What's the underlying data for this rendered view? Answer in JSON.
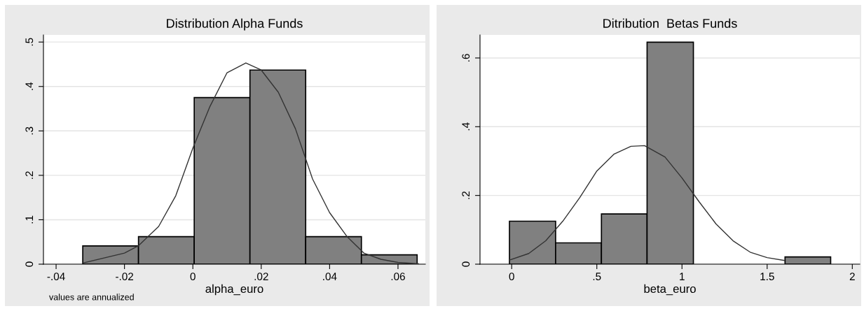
{
  "chart_data": [
    {
      "type": "histogram",
      "title": "Distribution Alpha Funds",
      "xlabel": "alpha_euro",
      "annotations": [
        "values are annualized"
      ],
      "grid": "y",
      "xlim": [
        -0.0437,
        0.068
      ],
      "ylim": [
        0,
        0.516
      ],
      "xticks": [
        {
          "value": -0.04,
          "label": "-.04"
        },
        {
          "value": -0.02,
          "label": "-.02"
        },
        0,
        {
          "value": 0.02,
          "label": ".02"
        },
        {
          "value": 0.04,
          "label": ".04"
        },
        {
          "value": 0.06,
          "label": ".06"
        }
      ],
      "yticks": [
        0,
        {
          "value": 0.1,
          "label": ".1"
        },
        {
          "value": 0.2,
          "label": ".2"
        },
        {
          "value": 0.3,
          "label": ".3"
        },
        {
          "value": 0.4,
          "label": ".4"
        },
        {
          "value": 0.5,
          "label": ".5"
        }
      ],
      "series": [
        {
          "color": "#808080",
          "bins": [
            -0.0322,
            -0.0159,
            0.0004,
            0.0167,
            0.033,
            0.0493,
            0.0656
          ],
          "values": [
            0.041,
            0.062,
            0.375,
            0.437,
            0.062,
            0.021
          ]
        },
        {
          "type": "line",
          "color": "#333333",
          "x": [
            -0.032,
            -0.02,
            -0.016,
            -0.01,
            -0.005,
            0,
            0.005,
            0.01,
            0.0155,
            0.02,
            0.025,
            0.03,
            0.035,
            0.04,
            0.045,
            0.05,
            0.055,
            0.06,
            0.066
          ],
          "values": [
            0.003,
            0.025,
            0.041,
            0.085,
            0.154,
            0.261,
            0.355,
            0.431,
            0.453,
            0.437,
            0.387,
            0.305,
            0.192,
            0.116,
            0.063,
            0.025,
            0.011,
            0.004,
            0.001
          ]
        }
      ]
    },
    {
      "type": "histogram",
      "title": "Ditribution  Betas Funds",
      "xlabel": "beta_euro",
      "grid": "y",
      "xlim": [
        -0.186,
        2.044
      ],
      "ylim": [
        0,
        0.667
      ],
      "xticks": [
        0,
        {
          "value": 0.5,
          "label": ".5"
        },
        1,
        1.5,
        2
      ],
      "yticks": [
        0,
        {
          "value": 0.2,
          "label": ".2"
        },
        {
          "value": 0.4,
          "label": ".4"
        },
        {
          "value": 0.6,
          "label": ".6"
        }
      ],
      "series": [
        {
          "color": "#808080",
          "bins": [
            -0.013,
            0.258,
            0.527,
            0.795,
            1.067,
            1.605,
            1.873
          ],
          "values": [
            0.125,
            0.062,
            0.146,
            0.646,
            0,
            0.021
          ]
        },
        {
          "type": "line",
          "color": "#333333",
          "x": [
            -0.013,
            0.1,
            0.2,
            0.3,
            0.4,
            0.5,
            0.6,
            0.7,
            0.78,
            0.9,
            1.0,
            1.1,
            1.2,
            1.3,
            1.4,
            1.5,
            1.6
          ],
          "values": [
            0.012,
            0.031,
            0.068,
            0.125,
            0.194,
            0.271,
            0.32,
            0.343,
            0.345,
            0.312,
            0.251,
            0.182,
            0.117,
            0.068,
            0.035,
            0.019,
            0.011
          ]
        }
      ]
    }
  ]
}
